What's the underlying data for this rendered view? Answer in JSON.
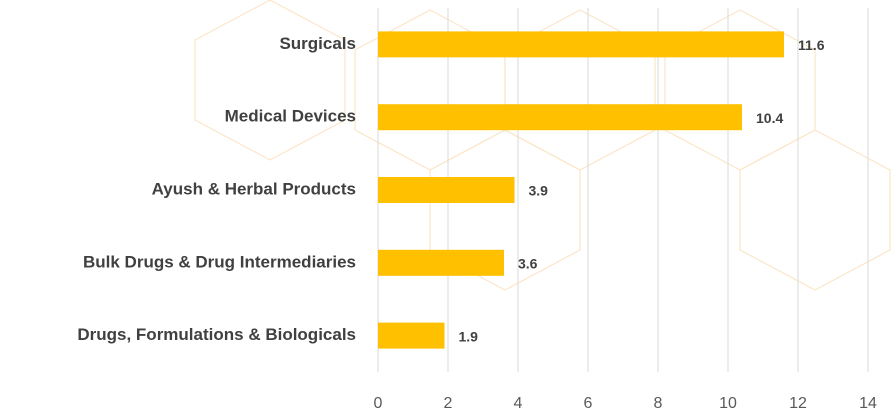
{
  "chart_data": {
    "type": "bar",
    "orientation": "horizontal",
    "categories": [
      "Surgicals",
      "Medical Devices",
      "Ayush & Herbal Products",
      "Bulk Drugs & Drug Intermediaries",
      "Drugs, Formulations & Biologicals"
    ],
    "values": [
      11.6,
      10.4,
      3.9,
      3.6,
      1.9
    ],
    "color": "#ffc000",
    "xlim": [
      0,
      14
    ],
    "xticks": [
      0,
      2,
      4,
      6,
      8,
      10,
      12,
      14
    ],
    "grid": true
  }
}
